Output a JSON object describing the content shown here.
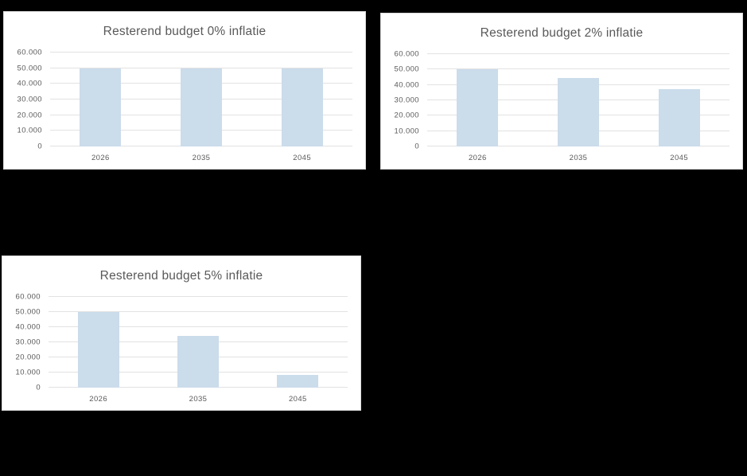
{
  "colors": {
    "background": "#000000",
    "panel_background": "#ffffff",
    "panel_border": "#d9d9d9",
    "bar_fill": "#cbdceb",
    "gridline": "#e2e2e2",
    "title_text": "#595959",
    "tick_text": "#595959"
  },
  "chart_data": [
    {
      "type": "bar",
      "title": "Resterend budget 0% inflatie",
      "categories": [
        "2026",
        "2035",
        "2045"
      ],
      "values": [
        50000,
        50000,
        50000
      ],
      "xlabel": "",
      "ylabel": "",
      "ylim": [
        0,
        60000
      ],
      "ytick_step": 10000,
      "ytick_labels": [
        "0",
        "10.000",
        "20.000",
        "30.000",
        "40.000",
        "50.000",
        "60.000"
      ],
      "grid": true,
      "legend_position": "none"
    },
    {
      "type": "bar",
      "title": "Resterend budget 2% inflatie",
      "categories": [
        "2026",
        "2035",
        "2045"
      ],
      "values": [
        50000,
        44500,
        37500
      ],
      "xlabel": "",
      "ylabel": "",
      "ylim": [
        0,
        60000
      ],
      "ytick_step": 10000,
      "ytick_labels": [
        "0",
        "10.000",
        "20.000",
        "30.000",
        "40.000",
        "50.000",
        "60.000"
      ],
      "grid": true,
      "legend_position": "none"
    },
    {
      "type": "bar",
      "title": "Resterend budget 5% inflatie",
      "categories": [
        "2026",
        "2035",
        "2045"
      ],
      "values": [
        50000,
        34000,
        8200
      ],
      "xlabel": "",
      "ylabel": "",
      "ylim": [
        0,
        60000
      ],
      "ytick_step": 10000,
      "ytick_labels": [
        "0",
        "10.000",
        "20.000",
        "30.000",
        "40.000",
        "50.000",
        "60.000"
      ],
      "grid": true,
      "legend_position": "none"
    }
  ]
}
